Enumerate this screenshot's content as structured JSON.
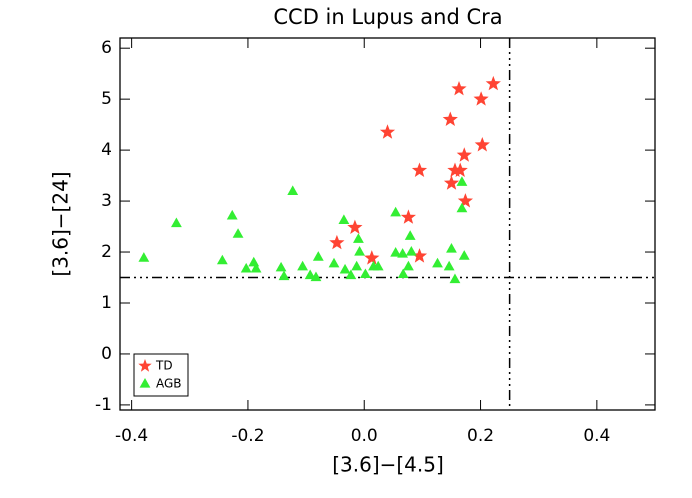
{
  "chart_data": {
    "type": "scatter",
    "title": "CCD in Lupus and Cra",
    "x_label": "[3.6]−[4.5]",
    "y_label": "[3.6]−[24]",
    "xlim": [
      -0.42,
      0.5
    ],
    "ylim": [
      -1.1,
      6.2
    ],
    "xticks": [
      -0.4,
      -0.2,
      {
        "value": 0,
        "label": "0.0"
      },
      0.2,
      0.4
    ],
    "yticks": [
      -1,
      0,
      1,
      2,
      3,
      4,
      5,
      6
    ],
    "hline": 1.5,
    "vline": 0.25,
    "legend": "lower left",
    "series": [
      {
        "name": "TD",
        "color": "#ff4433",
        "marker": "star",
        "x": [
          0.222,
          0.163,
          0.201,
          0.04,
          0.148,
          0.203,
          0.172,
          0.095,
          0.156,
          0.165,
          0.15,
          0.174,
          0.076,
          -0.016,
          -0.047,
          0.013,
          0.095
        ],
        "values": [
          5.3,
          5.2,
          5.0,
          4.35,
          4.6,
          4.1,
          3.9,
          3.6,
          3.6,
          3.6,
          3.35,
          3.0,
          2.68,
          2.48,
          2.18,
          1.88,
          1.92
        ]
      },
      {
        "name": "AGB",
        "color": "#33ee33",
        "marker": "triangle",
        "x": [
          -0.379,
          -0.323,
          -0.227,
          -0.217,
          -0.244,
          -0.203,
          -0.19,
          -0.186,
          -0.123,
          -0.143,
          -0.138,
          -0.106,
          -0.093,
          -0.083,
          -0.079,
          -0.052,
          -0.035,
          -0.033,
          -0.023,
          -0.01,
          -0.008,
          -0.013,
          0.002,
          0.016,
          0.024,
          0.054,
          0.054,
          0.066,
          0.067,
          0.076,
          0.079,
          0.081,
          0.126,
          0.146,
          0.15,
          0.156,
          0.168,
          0.168,
          0.172
        ],
        "values": [
          1.88,
          2.56,
          2.71,
          2.35,
          1.83,
          1.67,
          1.79,
          1.67,
          3.19,
          1.69,
          1.52,
          1.71,
          1.54,
          1.5,
          1.9,
          1.77,
          2.62,
          1.65,
          1.54,
          2.25,
          2.0,
          1.71,
          1.56,
          1.71,
          1.71,
          1.98,
          2.77,
          1.96,
          1.56,
          1.71,
          2.31,
          2.0,
          1.77,
          1.71,
          2.06,
          1.46,
          2.85,
          3.37,
          1.92
        ]
      }
    ]
  }
}
